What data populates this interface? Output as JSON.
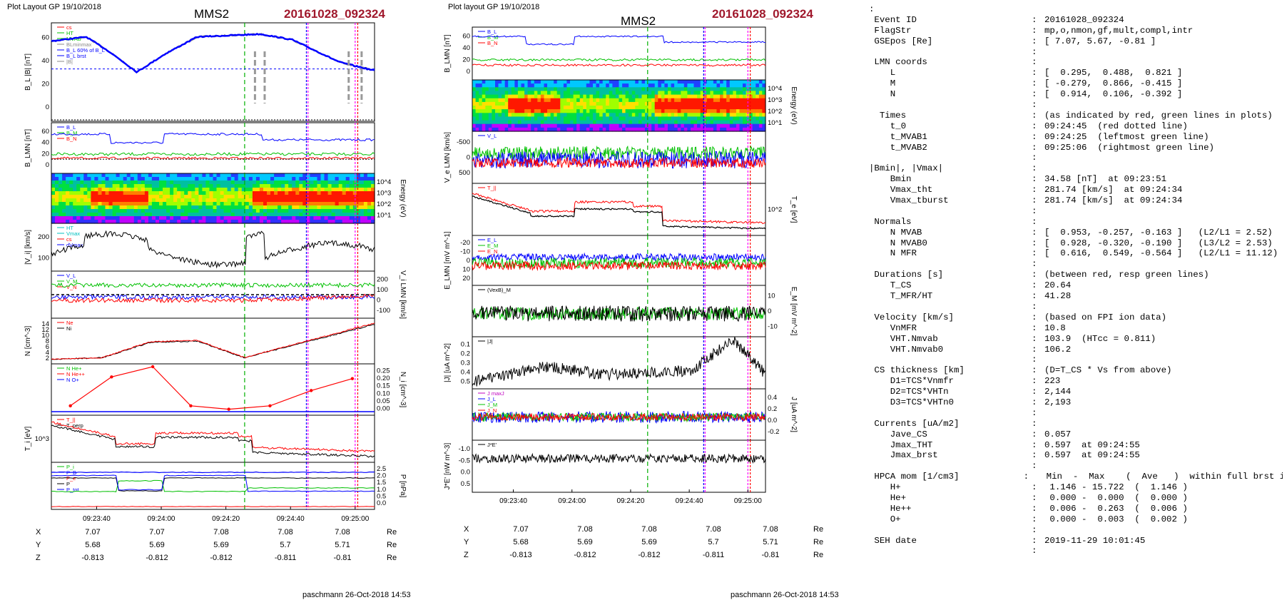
{
  "left": {
    "layout_label": "Plot Layout GP 19/10/2018",
    "spacecraft": "MMS2",
    "event": "20161028_092324",
    "footer": "paschmann 26-Oct-2018 14:53",
    "time_ticks": [
      "09:23:40",
      "09:24:00",
      "09:24:20",
      "09:24:40",
      "09:25:00"
    ],
    "coords": {
      "rows": [
        {
          "label": "X",
          "values": [
            "7.07",
            "7.07",
            "7.08",
            "7.08",
            "7.08"
          ],
          "unit": "Re"
        },
        {
          "label": "Y",
          "values": [
            "5.68",
            "5.69",
            "5.69",
            "5.7",
            "5.71"
          ],
          "unit": "Re"
        },
        {
          "label": "Z",
          "values": [
            "-0.813",
            "-0.812",
            "-0.812",
            "-0.811",
            "-0.81"
          ],
          "unit": "Re"
        }
      ]
    },
    "panels": [
      {
        "id": "bl",
        "ylabel": "B_L |B| [nT]",
        "yticks": [
          "0",
          "20",
          "40",
          "60"
        ],
        "legend": [
          {
            "t": "cs",
            "c": "#ff0000"
          },
          {
            "t": "HT",
            "c": "#00c000"
          },
          {
            "t": "MVAB",
            "c": "#00c000"
          },
          {
            "t": "BLminmax",
            "c": "#888888"
          },
          {
            "t": "B_L 60% of B_L",
            "c": "#0000ff"
          },
          {
            "t": "B_L brst",
            "c": "#0000ff"
          },
          {
            "t": "|B|",
            "c": "#888888"
          }
        ]
      },
      {
        "id": "blmn",
        "ylabel": "B_LMN [nT]",
        "yticks": [
          "0",
          "20",
          "40",
          "60"
        ],
        "legend": [
          {
            "t": "B_L",
            "c": "#0000ff"
          },
          {
            "t": "B_M",
            "c": "#00c000"
          },
          {
            "t": "B_N",
            "c": "#ff0000"
          }
        ]
      },
      {
        "id": "spec",
        "rlabel": "Energy (eV)",
        "rticks": [
          "10^4",
          "10^3",
          "10^2",
          "10^1"
        ]
      },
      {
        "id": "vi",
        "ylabel": "|V_i| [km/s]",
        "yticks": [
          "100",
          "200"
        ],
        "legend": [
          {
            "t": "HT",
            "c": "#00c0c0"
          },
          {
            "t": "Vmax",
            "c": "#00c0c0"
          },
          {
            "t": "cs",
            "c": "#ff0000"
          },
          {
            "t": "dVmax",
            "c": "#0000ff"
          }
        ]
      },
      {
        "id": "vlmn",
        "rlabel": "V_i LMN [km/s]",
        "rticks": [
          "200",
          "100",
          "0",
          "-100"
        ],
        "legend": [
          {
            "t": "V_L",
            "c": "#0000ff"
          },
          {
            "t": "V_M",
            "c": "#00c000"
          },
          {
            "t": "V_N",
            "c": "#ff0000"
          }
        ]
      },
      {
        "id": "n",
        "ylabel": "N [cm^-3]",
        "yticks": [
          "2",
          "4",
          "6",
          "8",
          "10",
          "12",
          "14"
        ],
        "legend": [
          {
            "t": "Ne",
            "c": "#ff0000"
          },
          {
            "t": "Ni",
            "c": "#000000"
          }
        ]
      },
      {
        "id": "nhp",
        "rlabel": "N_i [cm^-3]",
        "rticks": [
          "0.25",
          "0.20",
          "0.15",
          "0.10",
          "0.05",
          "0.00"
        ],
        "legend": [
          {
            "t": "N He+",
            "c": "#00c000"
          },
          {
            "t": "N He++",
            "c": "#ff0000"
          },
          {
            "t": "N O+",
            "c": "#0000ff"
          }
        ]
      },
      {
        "id": "ti",
        "ylabel": "T_i [eV]",
        "yticks": [
          "10^3"
        ],
        "legend": [
          {
            "t": "T_||",
            "c": "#ff0000"
          },
          {
            "t": "T_perp",
            "c": "#000000"
          }
        ]
      },
      {
        "id": "p",
        "rlabel": "P [nPa]",
        "rticks": [
          "2.5",
          "2.0",
          "1.5",
          "1.0",
          "0.5",
          "0.0"
        ],
        "legend": [
          {
            "t": "P_i",
            "c": "#00c000"
          },
          {
            "t": "P_B",
            "c": "#0000ff"
          },
          {
            "t": "P_e",
            "c": "#ff0000"
          },
          {
            "t": "P",
            "c": "#000000"
          },
          {
            "t": "P_tot",
            "c": "#0000ff"
          }
        ]
      }
    ]
  },
  "middle": {
    "layout_label": "Plot layout GP 19/10/2018",
    "spacecraft": "MMS2",
    "event": "20161028_092324",
    "footer": "paschmann 26-Oct-2018 14:53",
    "time_ticks": [
      "09:23:40",
      "09:24:00",
      "09:24:20",
      "09:24:40",
      "09:25:00"
    ],
    "coords": {
      "rows": [
        {
          "label": "X",
          "values": [
            "7.07",
            "7.08",
            "7.08",
            "7.08",
            "7.08"
          ],
          "unit": "Re"
        },
        {
          "label": "Y",
          "values": [
            "5.68",
            "5.69",
            "5.69",
            "5.7",
            "5.71"
          ],
          "unit": "Re"
        },
        {
          "label": "Z",
          "values": [
            "-0.813",
            "-0.812",
            "-0.812",
            "-0.811",
            "-0.81"
          ],
          "unit": "Re"
        }
      ]
    },
    "panels": [
      {
        "id": "blmn",
        "ylabel": "B_LMN [nT]",
        "yticks": [
          "0",
          "20",
          "40",
          "60"
        ],
        "legend": [
          {
            "t": "B_L",
            "c": "#0000ff"
          },
          {
            "t": "B_M",
            "c": "#00c000"
          },
          {
            "t": "B_N",
            "c": "#ff0000"
          }
        ]
      },
      {
        "id": "spec",
        "rlabel": "Energy (eV)",
        "rticks": [
          "10^4",
          "10^3",
          "10^2",
          "10^1"
        ]
      },
      {
        "id": "ve",
        "ylabel": "V_e LMN [km/s]",
        "yticks": [
          "500",
          "0",
          "-500"
        ],
        "legend": [
          {
            "t": "V_L",
            "c": "#0000ff"
          }
        ]
      },
      {
        "id": "te",
        "rlabel": "T_e [eV]",
        "rticks": [
          "10^2"
        ],
        "legend": [
          {
            "t": "T_||",
            "c": "#ff0000"
          }
        ]
      },
      {
        "id": "elmn",
        "ylabel": "E_LMN [mV m^-1]",
        "yticks": [
          "20",
          "10",
          "0",
          "-10",
          "-20"
        ],
        "legend": [
          {
            "t": "E_L",
            "c": "#0000ff"
          },
          {
            "t": "E_M",
            "c": "#00c000"
          },
          {
            "t": "E_N",
            "c": "#ff0000"
          }
        ]
      },
      {
        "id": "em",
        "rlabel": "E_M [mV m^-2]",
        "rticks": [
          "10",
          "0",
          "-10"
        ],
        "legend": [
          {
            "t": "(VexB)_M",
            "c": "#000000"
          }
        ]
      },
      {
        "id": "j",
        "ylabel": "|J| [uA m^-2]",
        "yticks": [
          "0.5",
          "0.4",
          "0.3",
          "0.2",
          "0.1"
        ],
        "legend": [
          {
            "t": "|J|",
            "c": "#000000"
          }
        ]
      },
      {
        "id": "jlmn",
        "rlabel": "J [uA m^-2]",
        "rticks": [
          "0.4",
          "0.2",
          "0.0",
          "-0.2"
        ],
        "legend": [
          {
            "t": "J maxJ",
            "c": "#c000c0"
          },
          {
            "t": "J_L",
            "c": "#0000ff"
          },
          {
            "t": "J_M",
            "c": "#00c000"
          },
          {
            "t": "J_N",
            "c": "#ff0000"
          }
        ]
      },
      {
        "id": "je",
        "ylabel": "J*E' [nW m^-3]",
        "yticks": [
          "0.5",
          "0.0",
          "-0.5",
          "-1.0"
        ],
        "legend": [
          {
            "t": "J*E'",
            "c": "#000000"
          }
        ]
      }
    ]
  },
  "info": {
    "rows": [
      {
        "k": ":",
        "v": ""
      },
      {
        "k": " Event ID",
        "v": "20161028_092324"
      },
      {
        "k": " FlagStr",
        "v": "mp,o,nmon,gf,mult,compl,intr"
      },
      {
        "k": " GSEpos [Re]",
        "v": "[ 7.07, 5.67, -0.81 ]"
      },
      {
        "k": "",
        "v": ""
      },
      {
        "k": " LMN coords",
        "v": ""
      },
      {
        "k": "    L",
        "v": "[  0.295,  0.488,  0.821 ]"
      },
      {
        "k": "    M",
        "v": "[ -0.279,  0.866, -0.415 ]"
      },
      {
        "k": "    N",
        "v": "[  0.914,  0.106, -0.392 ]"
      },
      {
        "k": "",
        "v": ""
      },
      {
        "k": "  Times",
        "v": "(as indicated by red, green lines in plots)"
      },
      {
        "k": "    t_0",
        "v": "09:24:45  (red dotted line)"
      },
      {
        "k": "    t_MVAB1",
        "v": "09:24:25  (leftmost green line)"
      },
      {
        "k": "    t_MVAB2",
        "v": "09:25:06  (rightmost green line)"
      },
      {
        "k": "",
        "v": ""
      },
      {
        "k": "|Bmin|, |Vmax|",
        "v": ""
      },
      {
        "k": "    Bmin",
        "v": "34.58 [nT]  at 09:23:51"
      },
      {
        "k": "    Vmax_tht",
        "v": "281.74 [km/s]  at 09:24:34"
      },
      {
        "k": "    Vmax_tburst",
        "v": "281.74 [km/s]  at 09:24:34"
      },
      {
        "k": "",
        "v": ""
      },
      {
        "k": " Normals",
        "v": ""
      },
      {
        "k": "    N MVAB",
        "v": "[  0.953, -0.257, -0.163 ]   (L2/L1 = 2.52)"
      },
      {
        "k": "    N MVAB0",
        "v": "[  0.928, -0.320, -0.190 ]   (L3/L2 = 2.53)"
      },
      {
        "k": "    N MFR",
        "v": "[  0.616,  0.549, -0.564 ]   (L2/L1 = 11.12)"
      },
      {
        "k": "",
        "v": ""
      },
      {
        "k": " Durations [s]",
        "v": "(between red, resp green lines)"
      },
      {
        "k": "    T_CS",
        "v": "20.64"
      },
      {
        "k": "    T_MFR/HT",
        "v": "41.28"
      },
      {
        "k": "",
        "v": ""
      },
      {
        "k": " Velocity [km/s]",
        "v": "(based on FPI ion data)"
      },
      {
        "k": "    VnMFR",
        "v": "10.8"
      },
      {
        "k": "    VHT.Nmvab",
        "v": "103.9  (HTcc = 0.811)"
      },
      {
        "k": "    VHT.Nmvab0",
        "v": "106.2"
      },
      {
        "k": "",
        "v": ""
      },
      {
        "k": " CS thickness [km]",
        "v": "(D=T_CS * Vs from above)"
      },
      {
        "k": "    D1=TCS*Vnmfr",
        "v": "223"
      },
      {
        "k": "    D2=TCS*VHTn",
        "v": "2,144"
      },
      {
        "k": "    D3=TCS*VHTn0",
        "v": "2,193"
      },
      {
        "k": "",
        "v": ""
      },
      {
        "k": " Currents [uA/m2]",
        "v": ""
      },
      {
        "k": "    Jave_CS",
        "v": "0.057"
      },
      {
        "k": "    Jmax_THT",
        "v": "0.597  at 09:24:55"
      },
      {
        "k": "    Jmax_brst",
        "v": "0.597  at 09:24:55"
      },
      {
        "k": "",
        "v": ""
      },
      {
        "k": " HPCA mom [1/cm3]",
        "v": "  Min  -  Max    (  Ave   )  within full brst int"
      },
      {
        "k": "    H+",
        "v": " 1.146 - 15.722  (  1.146 )"
      },
      {
        "k": "    He+",
        "v": " 0.000 -  0.000  (  0.000 )"
      },
      {
        "k": "    He++",
        "v": " 0.006 -  0.263  (  0.006 )"
      },
      {
        "k": "    O+",
        "v": " 0.000 -  0.003  (  0.002 )"
      },
      {
        "k": "",
        "v": ""
      },
      {
        "k": " SEH date",
        "v": "2019-11-29 10:01:45"
      },
      {
        "k": "",
        "v": ""
      }
    ]
  },
  "chart_data": [
    {
      "type": "line",
      "title": "MMS2 20161028_092324",
      "time_range": [
        "09:23:24",
        "09:25:06"
      ],
      "markers": {
        "t_0": "09:24:45",
        "t_MVAB1": "09:24:25",
        "t_MVAB2": "09:25:06"
      },
      "series": [
        {
          "name": "B_L brst",
          "panel": "bl",
          "unit": "nT",
          "t": [
            "09:23:24",
            "09:23:35",
            "09:23:42",
            "09:23:51",
            "09:24:00",
            "09:24:10",
            "09:24:30",
            "09:24:40",
            "09:24:55",
            "09:25:06"
          ],
          "values": [
            57,
            60,
            50,
            35,
            48,
            60,
            62,
            58,
            42,
            36
          ]
        },
        {
          "name": "Ni",
          "panel": "n",
          "unit": "cm^-3",
          "t": [
            "09:23:24",
            "09:23:40",
            "09:23:55",
            "09:24:10",
            "09:24:25",
            "09:24:40",
            "09:25:06"
          ],
          "values": [
            1.5,
            2,
            7,
            7.5,
            2,
            6,
            13
          ]
        },
        {
          "name": "N He++",
          "panel": "nhp",
          "unit": "cm^-3",
          "t": [
            "09:23:30",
            "09:23:43",
            "09:23:56",
            "09:24:08",
            "09:24:20",
            "09:24:33",
            "09:24:46",
            "09:24:59"
          ],
          "values": [
            0.03,
            0.2,
            0.26,
            0.03,
            0.01,
            0.03,
            0.12,
            0.19
          ]
        },
        {
          "name": "|J|",
          "panel": "j",
          "unit": "uA m^-2",
          "t": [
            "09:23:24",
            "09:23:50",
            "09:24:10",
            "09:24:40",
            "09:24:55",
            "09:25:06"
          ],
          "values": [
            0.05,
            0.25,
            0.15,
            0.2,
            0.597,
            0.15
          ]
        }
      ]
    }
  ]
}
